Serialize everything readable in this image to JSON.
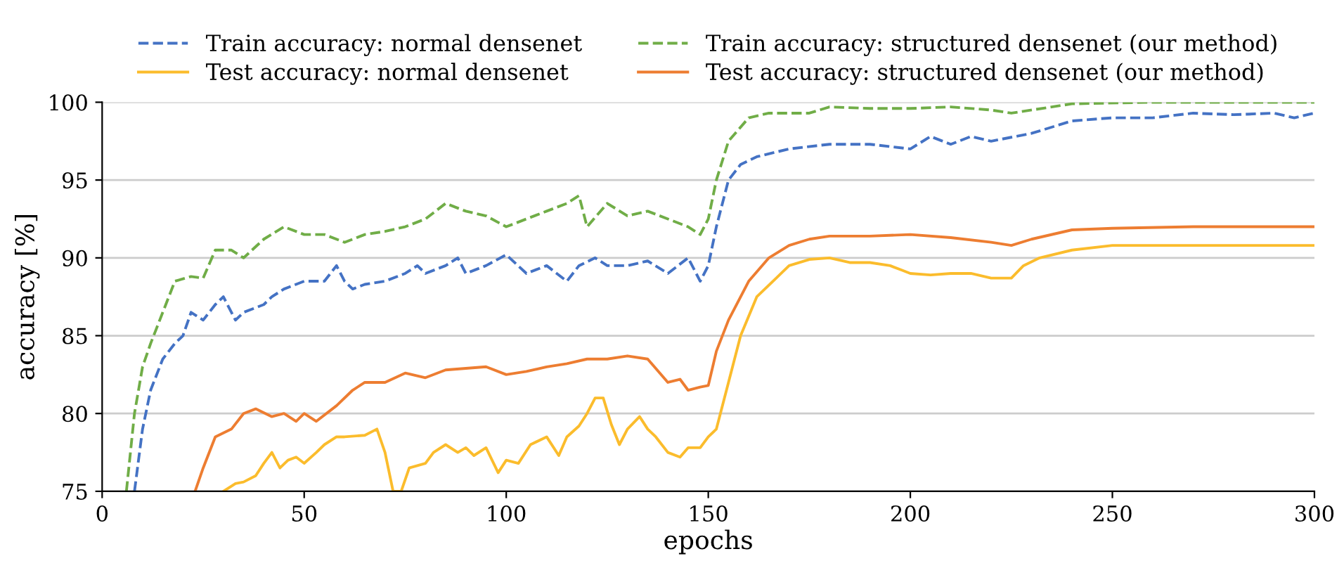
{
  "chart_data": {
    "type": "line",
    "xlabel": "epochs",
    "ylabel": "accuracy [%]",
    "xlim": [
      0,
      300
    ],
    "xticks": [
      0,
      50,
      100,
      150,
      200,
      250,
      300
    ],
    "ylim": [
      75,
      100
    ],
    "yticks": [
      75,
      80,
      85,
      90,
      95,
      100
    ],
    "grid": "y",
    "legend": "top",
    "series": [
      {
        "name": "Train accuracy: normal densenet",
        "color": "#4472c4",
        "line_style": "dashed",
        "x": [
          8,
          10,
          12,
          15,
          18,
          20,
          22,
          25,
          28,
          30,
          33,
          35,
          40,
          42,
          45,
          50,
          55,
          58,
          60,
          62,
          65,
          70,
          75,
          78,
          80,
          85,
          88,
          90,
          95,
          100,
          105,
          110,
          115,
          118,
          122,
          125,
          130,
          135,
          140,
          145,
          148,
          150,
          152,
          155,
          158,
          162,
          170,
          180,
          190,
          200,
          205,
          210,
          215,
          220,
          230,
          240,
          250,
          260,
          270,
          280,
          290,
          295,
          300
        ],
        "values": [
          75,
          79,
          81.5,
          83.5,
          84.5,
          85,
          86.5,
          86,
          87,
          87.5,
          86,
          86.5,
          87,
          87.5,
          88,
          88.5,
          88.5,
          89.5,
          88.5,
          88,
          88.3,
          88.5,
          89,
          89.5,
          89,
          89.5,
          90,
          89,
          89.5,
          90.2,
          89,
          89.5,
          88.5,
          89.5,
          90,
          89.5,
          89.5,
          89.8,
          89,
          90,
          88.5,
          89.5,
          92,
          95,
          96,
          96.5,
          97,
          97.3,
          97.3,
          97,
          97.8,
          97.3,
          97.8,
          97.5,
          98,
          98.8,
          99,
          99,
          99.3,
          99.2,
          99.3,
          99,
          99.3
        ]
      },
      {
        "name": "Test accuracy: normal densenet",
        "color": "#fbbc2c",
        "line_style": "solid",
        "x": [
          30,
          33,
          35,
          38,
          40,
          42,
          44,
          46,
          48,
          50,
          53,
          55,
          58,
          60,
          65,
          68,
          70,
          72,
          74,
          76,
          80,
          82,
          85,
          88,
          90,
          92,
          95,
          98,
          100,
          103,
          106,
          110,
          113,
          115,
          118,
          120,
          122,
          124,
          126,
          128,
          130,
          133,
          135,
          137,
          140,
          143,
          145,
          148,
          150,
          152,
          155,
          158,
          162,
          166,
          170,
          175,
          180,
          185,
          190,
          195,
          198,
          200,
          205,
          210,
          215,
          220,
          225,
          228,
          232,
          240,
          250,
          270,
          280,
          300
        ],
        "values": [
          75,
          75.5,
          75.6,
          76,
          76.8,
          77.5,
          76.5,
          77,
          77.2,
          76.8,
          77.5,
          78,
          78.5,
          78.5,
          78.6,
          79,
          77.5,
          75,
          75,
          76.5,
          76.8,
          77.5,
          78,
          77.5,
          77.8,
          77.3,
          77.8,
          76.2,
          77,
          76.8,
          78,
          78.5,
          77.3,
          78.5,
          79.2,
          80,
          81,
          81,
          79.3,
          78,
          79,
          79.8,
          79,
          78.5,
          77.5,
          77.2,
          77.8,
          77.8,
          78.5,
          79,
          82,
          85,
          87.5,
          88.5,
          89.5,
          89.9,
          90,
          89.7,
          89.7,
          89.5,
          89.2,
          89,
          88.9,
          89,
          89,
          88.7,
          88.7,
          89.5,
          90,
          90.5,
          90.8,
          90.8,
          90.8,
          90.8
        ]
      },
      {
        "name": "Train accuracy: structured densenet (our method)",
        "color": "#70ad47",
        "line_style": "dashed",
        "x": [
          6,
          8,
          10,
          12,
          15,
          18,
          22,
          25,
          28,
          32,
          35,
          40,
          45,
          50,
          55,
          60,
          65,
          70,
          75,
          80,
          85,
          90,
          95,
          100,
          105,
          110,
          115,
          118,
          120,
          125,
          130,
          135,
          140,
          145,
          148,
          150,
          152,
          155,
          160,
          165,
          175,
          180,
          190,
          200,
          210,
          220,
          225,
          240,
          260,
          280,
          300
        ],
        "values": [
          75,
          80,
          83,
          84.5,
          86.5,
          88.5,
          88.8,
          88.7,
          90.5,
          90.5,
          90,
          91.2,
          92,
          91.5,
          91.5,
          91,
          91.5,
          91.7,
          92,
          92.5,
          93.5,
          93,
          92.7,
          92,
          92.5,
          93,
          93.5,
          94,
          92,
          93.5,
          92.7,
          93,
          92.5,
          92,
          91.5,
          92.5,
          95,
          97.5,
          99,
          99.3,
          99.3,
          99.7,
          99.6,
          99.6,
          99.7,
          99.5,
          99.3,
          99.9,
          100,
          100,
          100
        ]
      },
      {
        "name": "Test accuracy: structured densenet (our method)",
        "color": "#ed7d31",
        "line_style": "solid",
        "x": [
          23,
          25,
          28,
          32,
          35,
          38,
          42,
          45,
          48,
          50,
          53,
          58,
          62,
          65,
          70,
          75,
          80,
          85,
          90,
          95,
          100,
          105,
          110,
          115,
          120,
          125,
          130,
          135,
          140,
          143,
          145,
          148,
          150,
          152,
          155,
          160,
          165,
          170,
          175,
          180,
          190,
          200,
          210,
          220,
          225,
          230,
          240,
          250,
          270,
          300
        ],
        "values": [
          75,
          76.5,
          78.5,
          79,
          80,
          80.3,
          79.8,
          80,
          79.5,
          80,
          79.5,
          80.5,
          81.5,
          82,
          82,
          82.6,
          82.3,
          82.8,
          82.9,
          83,
          82.5,
          82.7,
          83,
          83.2,
          83.5,
          83.5,
          83.7,
          83.5,
          82,
          82.2,
          81.5,
          81.7,
          81.8,
          84,
          86,
          88.5,
          90,
          90.8,
          91.2,
          91.4,
          91.4,
          91.5,
          91.3,
          91,
          90.8,
          91.2,
          91.8,
          91.9,
          92,
          92
        ]
      }
    ]
  }
}
